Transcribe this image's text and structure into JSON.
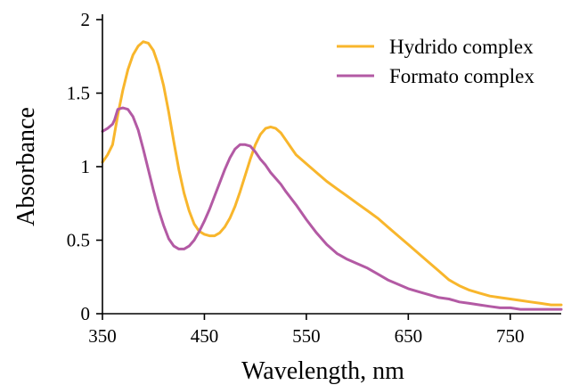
{
  "chart_data": {
    "type": "line",
    "title": "",
    "xlabel": "Wavelength, nm",
    "ylabel": "Absorbance",
    "xlim": [
      350,
      800
    ],
    "ylim": [
      0,
      2
    ],
    "x_ticks": [
      350,
      450,
      550,
      650,
      750
    ],
    "x_tick_labels": [
      "350",
      "450",
      "550",
      "650",
      "750"
    ],
    "y_ticks": [
      0,
      0.5,
      1,
      1.5,
      2
    ],
    "y_tick_labels": [
      "0",
      "0.5",
      "1",
      "1.5",
      "2"
    ],
    "grid": false,
    "legend_position": "top-right",
    "series": [
      {
        "name": "Hydrido complex",
        "color": "#f8b62c",
        "x": [
          350,
          355,
          360,
          365,
          370,
          375,
          380,
          385,
          390,
          395,
          400,
          405,
          410,
          415,
          420,
          425,
          430,
          435,
          440,
          445,
          450,
          455,
          460,
          465,
          470,
          475,
          480,
          485,
          490,
          495,
          500,
          505,
          510,
          515,
          520,
          525,
          530,
          535,
          540,
          550,
          560,
          570,
          580,
          590,
          600,
          610,
          620,
          630,
          640,
          650,
          660,
          670,
          680,
          690,
          700,
          710,
          720,
          730,
          740,
          750,
          760,
          770,
          780,
          790,
          800
        ],
        "y": [
          1.03,
          1.08,
          1.15,
          1.35,
          1.52,
          1.66,
          1.76,
          1.82,
          1.85,
          1.84,
          1.79,
          1.69,
          1.55,
          1.37,
          1.17,
          0.98,
          0.82,
          0.7,
          0.61,
          0.56,
          0.54,
          0.53,
          0.53,
          0.55,
          0.59,
          0.65,
          0.73,
          0.83,
          0.94,
          1.05,
          1.15,
          1.22,
          1.26,
          1.27,
          1.26,
          1.23,
          1.18,
          1.13,
          1.08,
          1.02,
          0.96,
          0.9,
          0.85,
          0.8,
          0.75,
          0.7,
          0.65,
          0.59,
          0.53,
          0.47,
          0.41,
          0.35,
          0.29,
          0.23,
          0.19,
          0.16,
          0.14,
          0.12,
          0.11,
          0.1,
          0.09,
          0.08,
          0.07,
          0.06,
          0.06
        ]
      },
      {
        "name": "Formato complex",
        "color": "#b35aa4",
        "x": [
          350,
          355,
          360,
          362,
          365,
          370,
          375,
          380,
          385,
          390,
          395,
          400,
          405,
          410,
          415,
          420,
          425,
          430,
          435,
          440,
          445,
          450,
          455,
          460,
          465,
          470,
          475,
          480,
          485,
          490,
          495,
          500,
          505,
          510,
          515,
          520,
          525,
          530,
          540,
          550,
          560,
          570,
          580,
          590,
          600,
          610,
          620,
          630,
          640,
          650,
          660,
          670,
          680,
          690,
          700,
          710,
          720,
          730,
          740,
          750,
          760,
          770,
          780,
          790,
          800
        ],
        "y": [
          1.24,
          1.26,
          1.29,
          1.32,
          1.39,
          1.4,
          1.39,
          1.34,
          1.25,
          1.12,
          0.98,
          0.84,
          0.71,
          0.6,
          0.51,
          0.46,
          0.44,
          0.44,
          0.46,
          0.5,
          0.56,
          0.63,
          0.71,
          0.8,
          0.89,
          0.98,
          1.06,
          1.12,
          1.15,
          1.15,
          1.14,
          1.1,
          1.05,
          1.01,
          0.96,
          0.92,
          0.88,
          0.83,
          0.74,
          0.64,
          0.55,
          0.47,
          0.41,
          0.37,
          0.34,
          0.31,
          0.27,
          0.23,
          0.2,
          0.17,
          0.15,
          0.13,
          0.11,
          0.1,
          0.08,
          0.07,
          0.06,
          0.05,
          0.04,
          0.04,
          0.03,
          0.03,
          0.03,
          0.03,
          0.03
        ]
      }
    ]
  }
}
